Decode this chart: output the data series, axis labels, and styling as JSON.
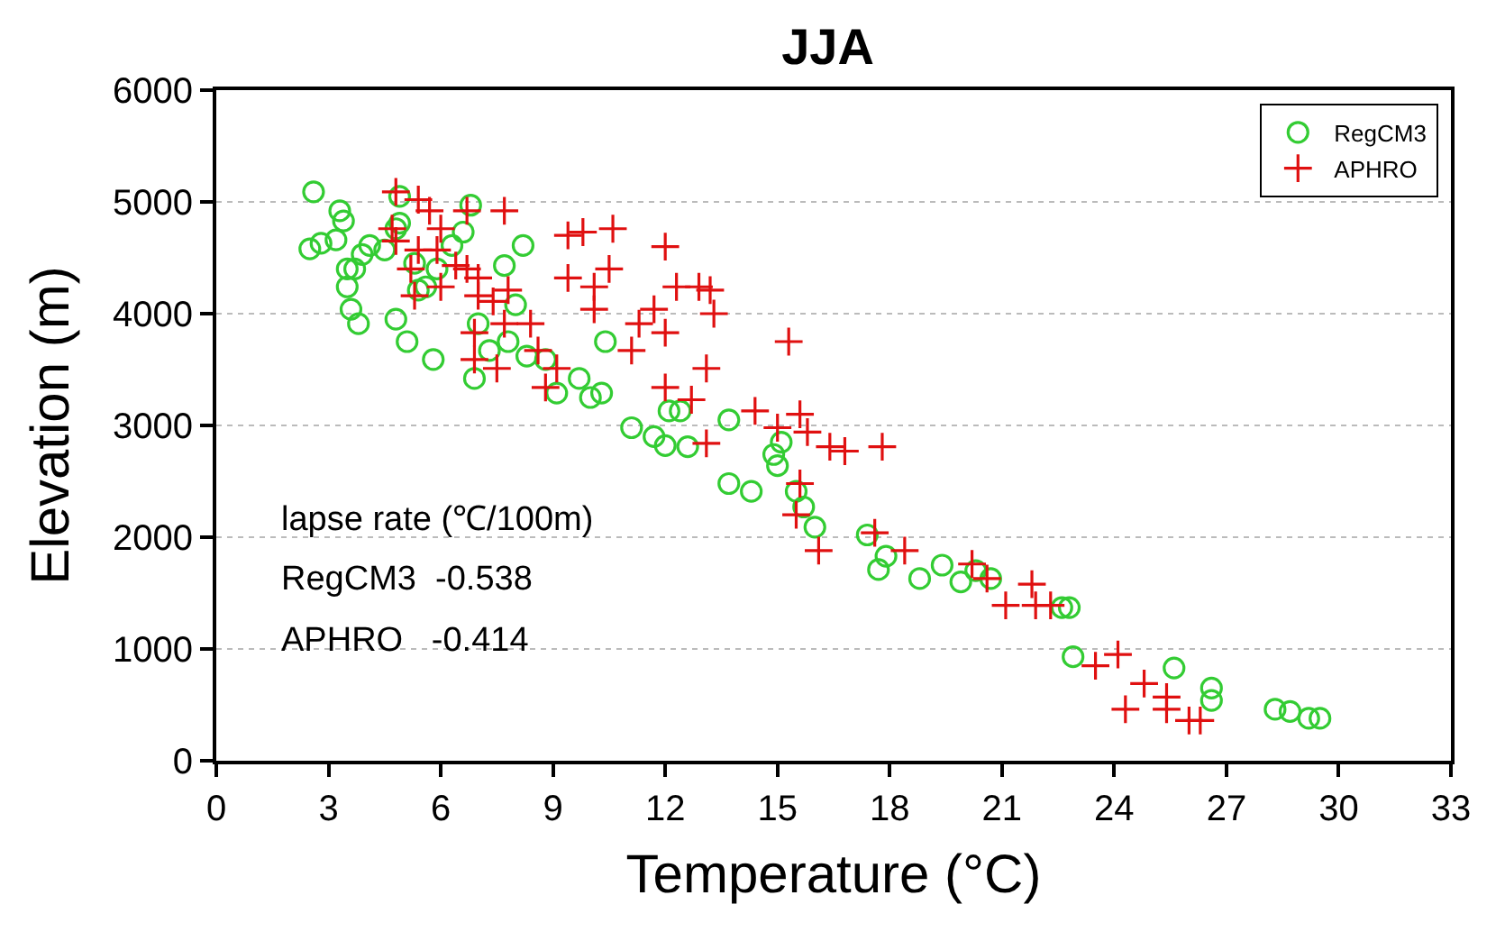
{
  "chart_data": {
    "type": "scatter",
    "title": "JJA",
    "xlabel": "Temperature (°C)",
    "ylabel": "Elevation (m)",
    "xlim": [
      0,
      33
    ],
    "xticks": [
      0,
      3,
      6,
      9,
      12,
      15,
      18,
      21,
      24,
      27,
      30,
      33
    ],
    "ylim": [
      0,
      6000
    ],
    "yticks": [
      0,
      1000,
      2000,
      3000,
      4000,
      5000,
      6000
    ],
    "grid": "y",
    "legend": "top right",
    "annotations": [
      "lapse rate (℃/100m)",
      "RegCM3  -0.538",
      "APHRO   -0.414"
    ],
    "series": [
      {
        "name": "RegCM3",
        "color": "#33cc33",
        "marker": "circle",
        "x": [
          2.6,
          2.5,
          2.8,
          3.3,
          3.4,
          3.2,
          3.5,
          3.5,
          3.6,
          3.8,
          3.7,
          3.9,
          4.1,
          4.5,
          4.8,
          5.1,
          5.8,
          4.8,
          4.9,
          4.9,
          5.3,
          5.6,
          6.3,
          6.6,
          6.8,
          5.9,
          5.4,
          7.0,
          6.9,
          7.3,
          7.8,
          8.2,
          7.7,
          8.0,
          8.3,
          8.8,
          9.1,
          9.7,
          10.0,
          10.3,
          10.4,
          11.1,
          11.7,
          12.1,
          12.4,
          12.0,
          12.6,
          13.7,
          14.3,
          13.7,
          14.9,
          15.1,
          15.0,
          15.5,
          15.7,
          16.0,
          17.4,
          17.7,
          17.9,
          18.8,
          19.4,
          19.9,
          20.3,
          20.7,
          22.6,
          22.8,
          22.9,
          25.6,
          26.6,
          26.6,
          28.3,
          28.7,
          29.2,
          29.5
        ],
        "values": [
          5090,
          4580,
          4630,
          4920,
          4830,
          4660,
          4400,
          4240,
          4040,
          3910,
          4400,
          4530,
          4610,
          4570,
          3950,
          3750,
          3590,
          4760,
          5050,
          4810,
          4450,
          4240,
          4610,
          4730,
          4970,
          4400,
          4210,
          3910,
          3420,
          3670,
          3750,
          4610,
          4430,
          4080,
          3620,
          3590,
          3290,
          3420,
          3250,
          3290,
          3750,
          2980,
          2900,
          3130,
          3130,
          2820,
          2810,
          2480,
          2410,
          3050,
          2740,
          2850,
          2640,
          2410,
          2270,
          2090,
          2020,
          1710,
          1830,
          1630,
          1750,
          1600,
          1700,
          1630,
          1370,
          1370,
          930,
          830,
          650,
          540,
          460,
          440,
          380,
          380
        ]
      },
      {
        "name": "APHRO",
        "color": "#e01010",
        "marker": "cross",
        "x": [
          4.8,
          5.4,
          5.7,
          6.7,
          7.7,
          4.7,
          4.8,
          6.0,
          5.4,
          5.9,
          5.2,
          6.4,
          6.7,
          7.0,
          7.8,
          7.0,
          5.3,
          6.0,
          7.4,
          6.9,
          7.7,
          7.5,
          6.9,
          8.4,
          8.6,
          9.1,
          8.8,
          9.4,
          9.8,
          10.6,
          9.4,
          10.1,
          10.5,
          10.1,
          11.1,
          11.3,
          11.7,
          12.0,
          12.3,
          12.0,
          12.9,
          13.2,
          13.3,
          13.1,
          12.7,
          12.0,
          15.3,
          14.4,
          13.1,
          15.0,
          15.6,
          15.8,
          16.4,
          16.8,
          17.8,
          15.6,
          15.5,
          16.1,
          17.6,
          18.4,
          20.2,
          20.6,
          21.1,
          21.8,
          21.9,
          22.3,
          23.5,
          24.1,
          24.8,
          24.3,
          25.4,
          25.4,
          26.0,
          26.3
        ],
        "values": [
          5090,
          5020,
          4920,
          4920,
          4920,
          4760,
          4650,
          4760,
          4570,
          4570,
          4400,
          4430,
          4400,
          4320,
          4210,
          4160,
          4160,
          4240,
          4110,
          3830,
          3910,
          3510,
          3590,
          3910,
          3670,
          3510,
          3340,
          4700,
          4730,
          4760,
          4320,
          4240,
          4400,
          4040,
          3670,
          3910,
          4040,
          4600,
          4240,
          3830,
          4240,
          4210,
          4000,
          3510,
          3230,
          3340,
          3750,
          3130,
          2840,
          2980,
          3100,
          2940,
          2810,
          2770,
          2810,
          2480,
          2200,
          1880,
          2040,
          1880,
          1760,
          1630,
          1390,
          1580,
          1390,
          1390,
          850,
          950,
          690,
          460,
          570,
          460,
          360,
          360
        ]
      }
    ]
  }
}
